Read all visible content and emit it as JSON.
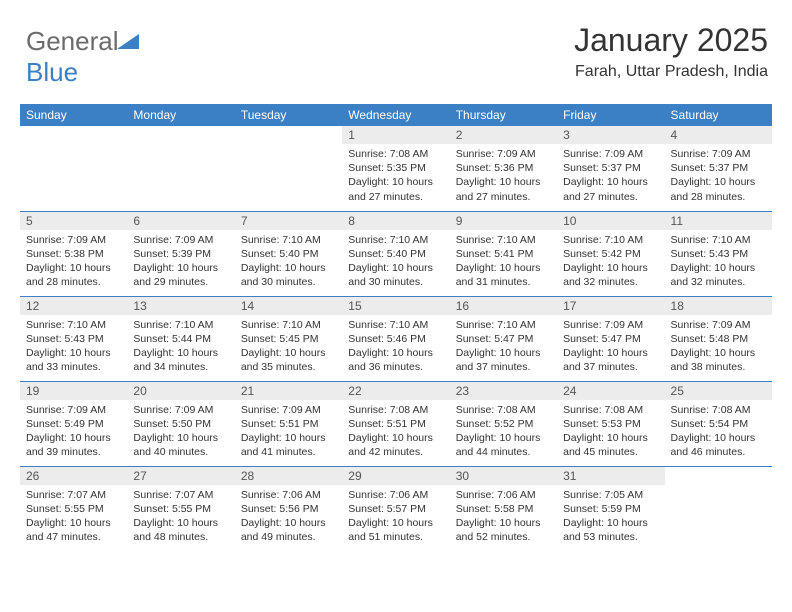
{
  "logo": {
    "text1": "General",
    "text2": "Blue",
    "icon_color": "#3b7fc4",
    "text1_color": "#6b6b6b"
  },
  "header": {
    "month": "January 2025",
    "location": "Farah, Uttar Pradesh, India"
  },
  "colors": {
    "accent": "#3b7fc4",
    "daynum_bg": "#ececec",
    "text": "#333333",
    "bg": "#ffffff"
  },
  "weekdays": [
    "Sunday",
    "Monday",
    "Tuesday",
    "Wednesday",
    "Thursday",
    "Friday",
    "Saturday"
  ],
  "layout": {
    "first_weekday_index": 3,
    "days_in_month": 31
  },
  "days": [
    {
      "n": 1,
      "sunrise": "7:08 AM",
      "sunset": "5:35 PM",
      "dl_h": 10,
      "dl_m": 27
    },
    {
      "n": 2,
      "sunrise": "7:09 AM",
      "sunset": "5:36 PM",
      "dl_h": 10,
      "dl_m": 27
    },
    {
      "n": 3,
      "sunrise": "7:09 AM",
      "sunset": "5:37 PM",
      "dl_h": 10,
      "dl_m": 27
    },
    {
      "n": 4,
      "sunrise": "7:09 AM",
      "sunset": "5:37 PM",
      "dl_h": 10,
      "dl_m": 28
    },
    {
      "n": 5,
      "sunrise": "7:09 AM",
      "sunset": "5:38 PM",
      "dl_h": 10,
      "dl_m": 28
    },
    {
      "n": 6,
      "sunrise": "7:09 AM",
      "sunset": "5:39 PM",
      "dl_h": 10,
      "dl_m": 29
    },
    {
      "n": 7,
      "sunrise": "7:10 AM",
      "sunset": "5:40 PM",
      "dl_h": 10,
      "dl_m": 30
    },
    {
      "n": 8,
      "sunrise": "7:10 AM",
      "sunset": "5:40 PM",
      "dl_h": 10,
      "dl_m": 30
    },
    {
      "n": 9,
      "sunrise": "7:10 AM",
      "sunset": "5:41 PM",
      "dl_h": 10,
      "dl_m": 31
    },
    {
      "n": 10,
      "sunrise": "7:10 AM",
      "sunset": "5:42 PM",
      "dl_h": 10,
      "dl_m": 32
    },
    {
      "n": 11,
      "sunrise": "7:10 AM",
      "sunset": "5:43 PM",
      "dl_h": 10,
      "dl_m": 32
    },
    {
      "n": 12,
      "sunrise": "7:10 AM",
      "sunset": "5:43 PM",
      "dl_h": 10,
      "dl_m": 33
    },
    {
      "n": 13,
      "sunrise": "7:10 AM",
      "sunset": "5:44 PM",
      "dl_h": 10,
      "dl_m": 34
    },
    {
      "n": 14,
      "sunrise": "7:10 AM",
      "sunset": "5:45 PM",
      "dl_h": 10,
      "dl_m": 35
    },
    {
      "n": 15,
      "sunrise": "7:10 AM",
      "sunset": "5:46 PM",
      "dl_h": 10,
      "dl_m": 36
    },
    {
      "n": 16,
      "sunrise": "7:10 AM",
      "sunset": "5:47 PM",
      "dl_h": 10,
      "dl_m": 37
    },
    {
      "n": 17,
      "sunrise": "7:09 AM",
      "sunset": "5:47 PM",
      "dl_h": 10,
      "dl_m": 37
    },
    {
      "n": 18,
      "sunrise": "7:09 AM",
      "sunset": "5:48 PM",
      "dl_h": 10,
      "dl_m": 38
    },
    {
      "n": 19,
      "sunrise": "7:09 AM",
      "sunset": "5:49 PM",
      "dl_h": 10,
      "dl_m": 39
    },
    {
      "n": 20,
      "sunrise": "7:09 AM",
      "sunset": "5:50 PM",
      "dl_h": 10,
      "dl_m": 40
    },
    {
      "n": 21,
      "sunrise": "7:09 AM",
      "sunset": "5:51 PM",
      "dl_h": 10,
      "dl_m": 41
    },
    {
      "n": 22,
      "sunrise": "7:08 AM",
      "sunset": "5:51 PM",
      "dl_h": 10,
      "dl_m": 42
    },
    {
      "n": 23,
      "sunrise": "7:08 AM",
      "sunset": "5:52 PM",
      "dl_h": 10,
      "dl_m": 44
    },
    {
      "n": 24,
      "sunrise": "7:08 AM",
      "sunset": "5:53 PM",
      "dl_h": 10,
      "dl_m": 45
    },
    {
      "n": 25,
      "sunrise": "7:08 AM",
      "sunset": "5:54 PM",
      "dl_h": 10,
      "dl_m": 46
    },
    {
      "n": 26,
      "sunrise": "7:07 AM",
      "sunset": "5:55 PM",
      "dl_h": 10,
      "dl_m": 47
    },
    {
      "n": 27,
      "sunrise": "7:07 AM",
      "sunset": "5:55 PM",
      "dl_h": 10,
      "dl_m": 48
    },
    {
      "n": 28,
      "sunrise": "7:06 AM",
      "sunset": "5:56 PM",
      "dl_h": 10,
      "dl_m": 49
    },
    {
      "n": 29,
      "sunrise": "7:06 AM",
      "sunset": "5:57 PM",
      "dl_h": 10,
      "dl_m": 51
    },
    {
      "n": 30,
      "sunrise": "7:06 AM",
      "sunset": "5:58 PM",
      "dl_h": 10,
      "dl_m": 52
    },
    {
      "n": 31,
      "sunrise": "7:05 AM",
      "sunset": "5:59 PM",
      "dl_h": 10,
      "dl_m": 53
    }
  ],
  "labels": {
    "sunrise": "Sunrise:",
    "sunset": "Sunset:",
    "daylight": "Daylight:",
    "hours_word": "hours",
    "and_word": "and",
    "minutes_word": "minutes."
  }
}
